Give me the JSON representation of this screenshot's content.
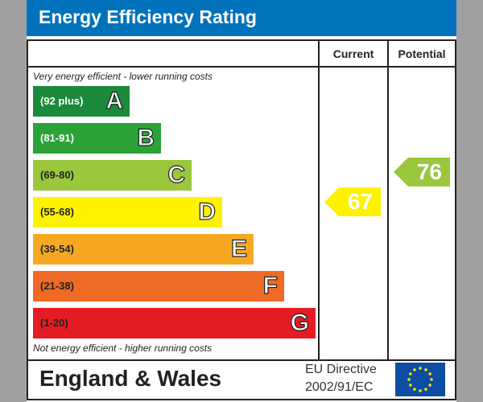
{
  "title": "Energy Efficiency Rating",
  "columns": {
    "current": "Current",
    "potential": "Potential"
  },
  "notes": {
    "top": "Very energy efficient - lower running costs",
    "bottom": "Not energy efficient - higher running costs"
  },
  "chart_data": {
    "type": "bar",
    "bands": [
      {
        "letter": "A",
        "range": "(92 plus)",
        "color": "#1a8a3a"
      },
      {
        "letter": "B",
        "range": "(81-91)",
        "color": "#2aa238"
      },
      {
        "letter": "C",
        "range": "(69-80)",
        "color": "#9ac73c"
      },
      {
        "letter": "D",
        "range": "(55-68)",
        "color": "#fff200"
      },
      {
        "letter": "E",
        "range": "(39-54)",
        "color": "#f7a823"
      },
      {
        "letter": "F",
        "range": "(21-38)",
        "color": "#ef6a24"
      },
      {
        "letter": "G",
        "range": "(1-20)",
        "color": "#e31d23"
      }
    ],
    "current": {
      "value": "67",
      "band": "D",
      "color": "#fff200"
    },
    "potential": {
      "value": "76",
      "band": "C",
      "color": "#9ac73c"
    }
  },
  "footer": {
    "region": "England & Wales",
    "directive_line1": "EU Directive",
    "directive_line2": "2002/91/EC"
  },
  "colors": {
    "header": "#0072bb",
    "background": "#a0a0a0"
  }
}
